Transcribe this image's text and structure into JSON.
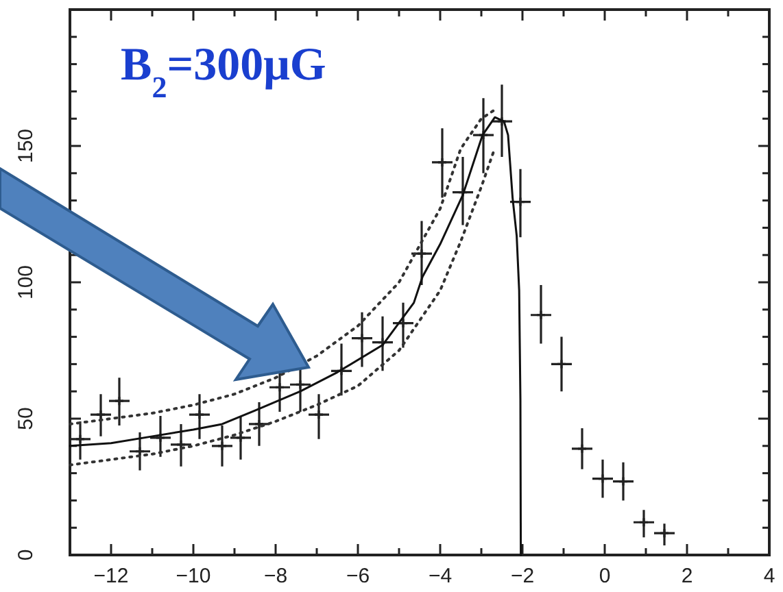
{
  "chart_data": {
    "type": "scatter",
    "xlim": [
      -13,
      4
    ],
    "ylim": [
      0,
      200
    ],
    "xticks": [
      {
        "value": -13,
        "label": null
      },
      -12,
      {
        "value": -11,
        "label": null
      },
      -10,
      {
        "value": -9,
        "label": null
      },
      -8,
      {
        "value": -7,
        "label": null
      },
      -6,
      {
        "value": -5,
        "label": null
      },
      -4,
      {
        "value": -3,
        "label": null
      },
      -2,
      {
        "value": -1,
        "label": null
      },
      0,
      {
        "value": 1,
        "label": null
      },
      2,
      {
        "value": 3,
        "label": null
      },
      4
    ],
    "yticks": [
      0,
      {
        "value": 10,
        "label": null
      },
      {
        "value": 20,
        "label": null
      },
      {
        "value": 30,
        "label": null
      },
      {
        "value": 40,
        "label": null
      },
      50,
      {
        "value": 60,
        "label": null
      },
      {
        "value": 70,
        "label": null
      },
      {
        "value": 80,
        "label": null
      },
      {
        "value": 90,
        "label": null
      },
      100,
      {
        "value": 110,
        "label": null
      },
      {
        "value": 120,
        "label": null
      },
      {
        "value": 130,
        "label": null
      },
      {
        "value": 140,
        "label": null
      },
      150,
      {
        "value": 160,
        "label": null
      },
      {
        "value": 170,
        "label": null
      },
      {
        "value": 180,
        "label": null
      },
      {
        "value": 190,
        "label": null
      }
    ],
    "grid": false,
    "annotations": [
      "B$_{2}$=300μG"
    ],
    "series": [
      {
        "color": "#222222",
        "marker": "cross",
        "x": [
          -12.75,
          -12.25,
          -11.8,
          -11.3,
          -10.8,
          -10.3,
          -9.85,
          -9.3,
          -8.85,
          -8.4,
          -7.9,
          -7.4,
          -6.95,
          -6.4,
          -5.9,
          -5.4,
          -4.9,
          -4.45,
          -3.95,
          -3.45,
          -2.95,
          -2.5,
          -2.05,
          -1.55,
          -1.05,
          -0.55,
          -0.05,
          0.45,
          0.95,
          1.45
        ],
        "values": [
          42.5,
          51.5,
          56.5,
          38,
          43,
          40.5,
          51.5,
          40,
          43,
          48,
          61.5,
          62.5,
          51.5,
          67.5,
          79.5,
          78,
          85,
          110.5,
          144,
          133,
          154,
          159,
          129.5,
          88,
          70,
          39,
          28,
          27,
          12,
          8
        ],
        "errors": [
          [
            35,
            49
          ],
          [
            43.5,
            59
          ],
          [
            47.5,
            65
          ],
          [
            31,
            45
          ],
          [
            36,
            51
          ],
          [
            32.5,
            48
          ],
          [
            42.5,
            59
          ],
          [
            32.5,
            47.5
          ],
          [
            35,
            51
          ],
          [
            40,
            56
          ],
          [
            52.5,
            68.5
          ],
          [
            52.5,
            71.5
          ],
          [
            42.5,
            59
          ],
          [
            58.5,
            77.5
          ],
          [
            69,
            89
          ],
          [
            67.5,
            87.5
          ],
          [
            76,
            92.5
          ],
          [
            99,
            122.5
          ],
          [
            131,
            156.5
          ],
          [
            121,
            146
          ],
          [
            140,
            167.5
          ],
          [
            146,
            172.5
          ],
          [
            116.5,
            141.5
          ],
          [
            77.5,
            99
          ],
          [
            60,
            80
          ],
          [
            31.5,
            46.5
          ],
          [
            21,
            35
          ],
          [
            20,
            34
          ],
          [
            6.5,
            16.5
          ],
          [
            3.5,
            11.5
          ]
        ],
        "xerrors": [
          0.25,
          0.25,
          0.25,
          0.25,
          0.25,
          0.25,
          0.25,
          0.25,
          0.25,
          0.25,
          0.25,
          0.25,
          0.25,
          0.25,
          0.25,
          0.25,
          0.25,
          0.25,
          0.25,
          0.25,
          0.25,
          0.25,
          0.25,
          0.25,
          0.25,
          0.25,
          0.25,
          0.25,
          0.25,
          0.25
        ]
      },
      {
        "type": "line",
        "color": "#111111",
        "line_style": "solid",
        "x": [
          -13,
          -12,
          -11,
          -10,
          -9.3,
          -8.5,
          -7.4,
          -6.5,
          -5.4,
          -4.64,
          -4.43,
          -4,
          -3.45,
          -2.97,
          -2.67,
          -2.45,
          -2.35,
          -2.24,
          -2.14,
          -2.08,
          -2.05,
          -2.04
        ],
        "values": [
          40,
          41,
          43.5,
          46,
          48,
          53,
          60,
          67,
          77,
          92.5,
          102,
          114,
          132,
          154,
          160.5,
          159,
          154,
          131,
          117,
          97,
          57,
          0
        ]
      },
      {
        "type": "line",
        "color": "#333333",
        "line_style": "dotted",
        "x": [
          -13,
          -12,
          -11,
          -10,
          -9,
          -8,
          -7,
          -6,
          -5,
          -4,
          -3.5,
          -3,
          -2.7
        ],
        "values": [
          48,
          50,
          52,
          55,
          59,
          65,
          73,
          84,
          100,
          127,
          149,
          160,
          163
        ]
      },
      {
        "type": "line",
        "color": "#333333",
        "line_style": "dotted",
        "x": [
          -13,
          -12,
          -11,
          -10,
          -9,
          -8,
          -7,
          -6,
          -5,
          -4,
          -3.5,
          -3,
          -2.7
        ],
        "values": [
          33,
          35,
          37,
          40,
          44,
          49,
          55,
          62,
          75,
          97,
          115,
          135,
          148
        ]
      }
    ]
  }
}
